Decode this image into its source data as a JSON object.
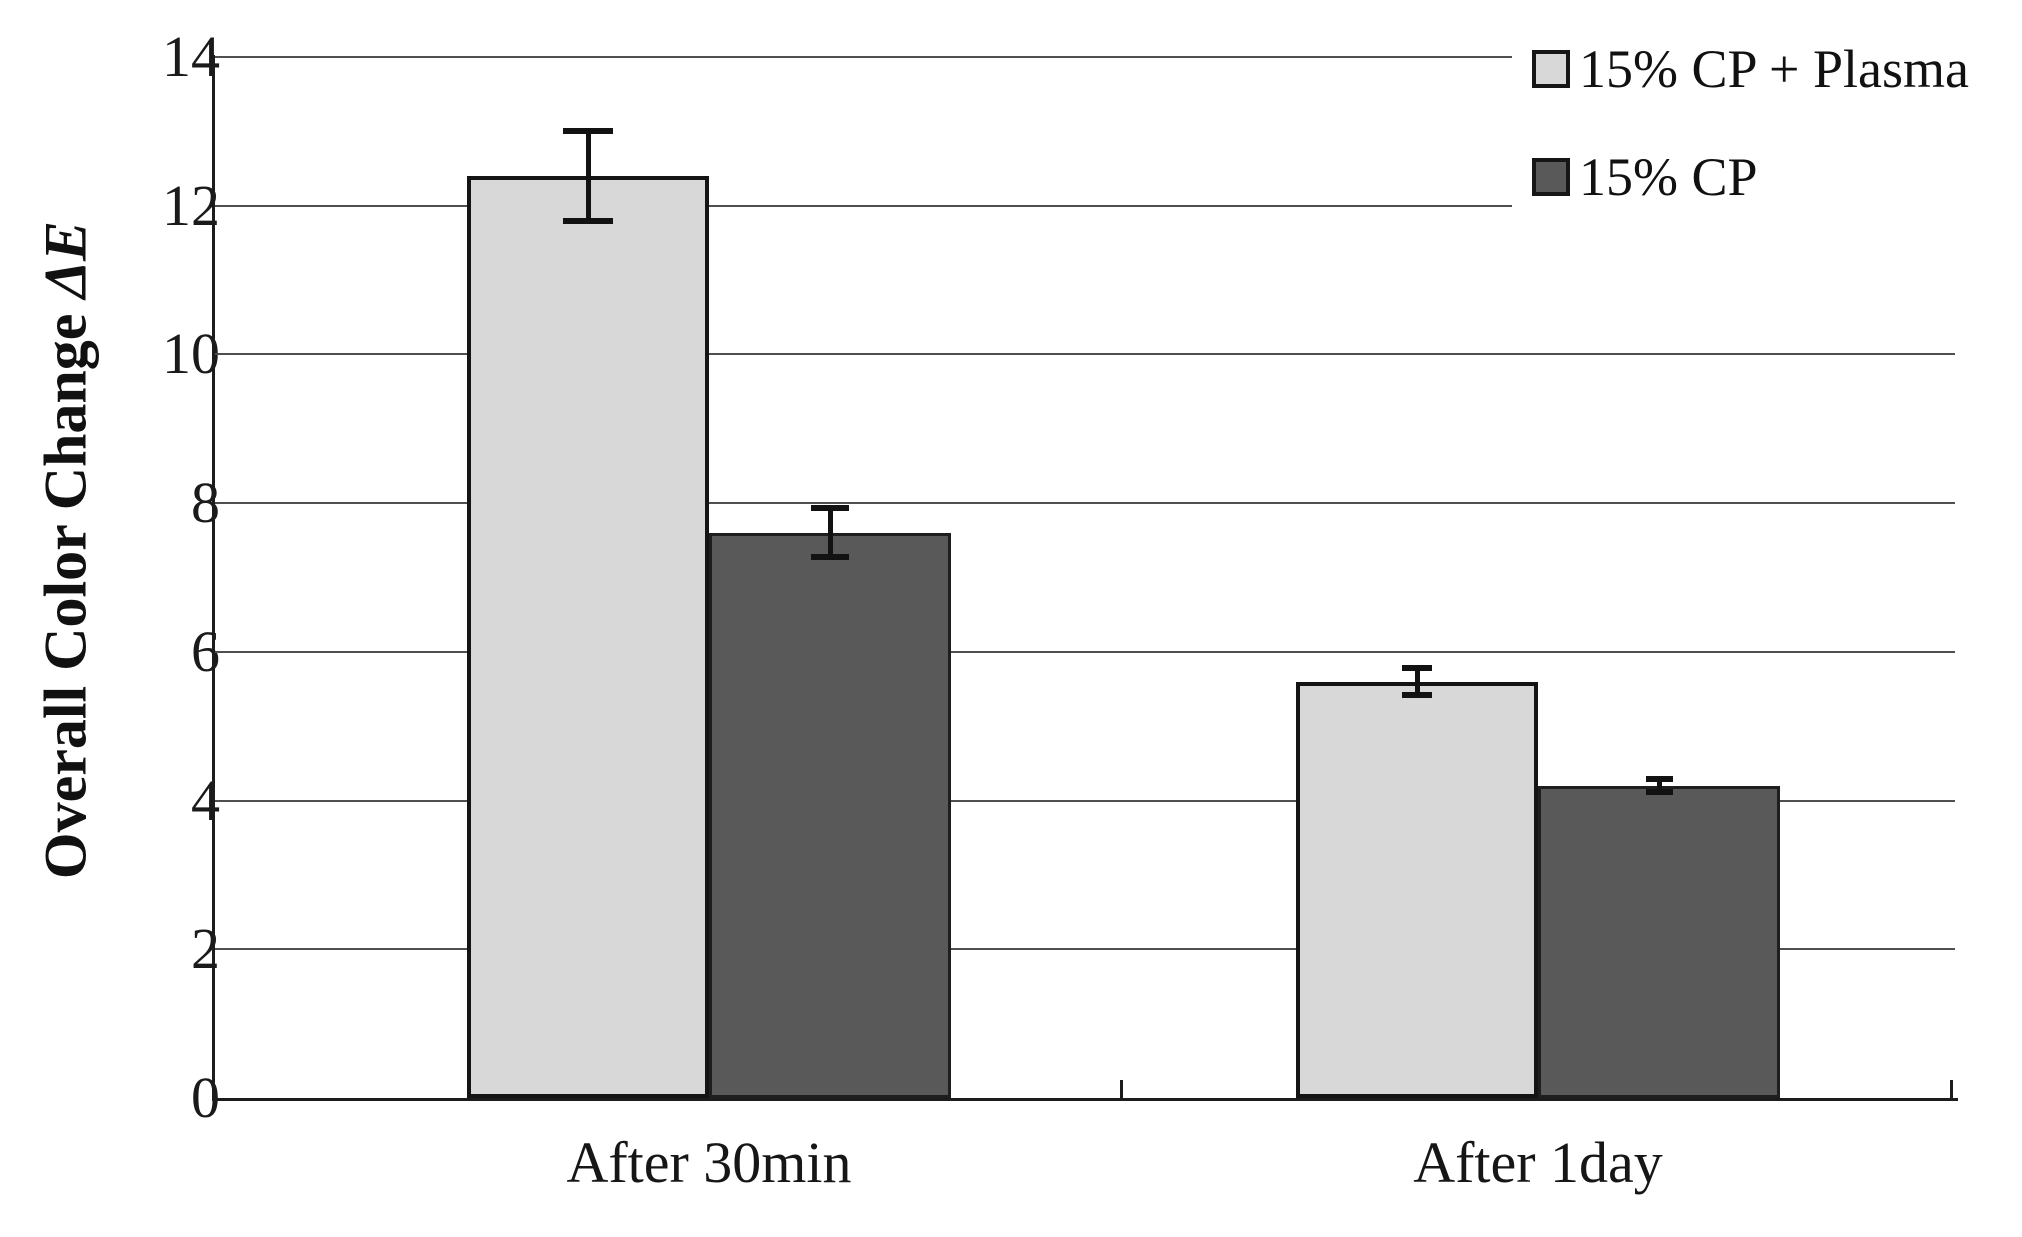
{
  "chart_data": {
    "type": "bar",
    "title": "",
    "ylabel_main": "Overall Color Change ",
    "ylabel_symbol": "ΔE",
    "xlabel": "",
    "categories": [
      "After 30min",
      "After 1day"
    ],
    "series": [
      {
        "name": "15% CP + Plasma",
        "color": "#d8d8d8",
        "border_color": "#141414",
        "values": [
          12.4,
          5.6
        ],
        "errors": [
          0.6,
          0.18
        ],
        "error_cap_widths": [
          50,
          30
        ]
      },
      {
        "name": "15% CP",
        "color": "#595959",
        "border_color": "#1e1e1e",
        "values": [
          7.6,
          4.2
        ],
        "errors": [
          0.33,
          0.09
        ],
        "error_cap_widths": [
          38,
          27
        ]
      }
    ],
    "yticks": [
      0,
      2,
      4,
      6,
      8,
      10,
      12,
      14
    ],
    "ylim": [
      0,
      14
    ],
    "grid": true,
    "legend_position": "top-right",
    "axis_color": "#1c1c1c",
    "grid_color": "#4f4f4f",
    "error_bar_color": "#121212",
    "background_color": "#ffffff"
  }
}
